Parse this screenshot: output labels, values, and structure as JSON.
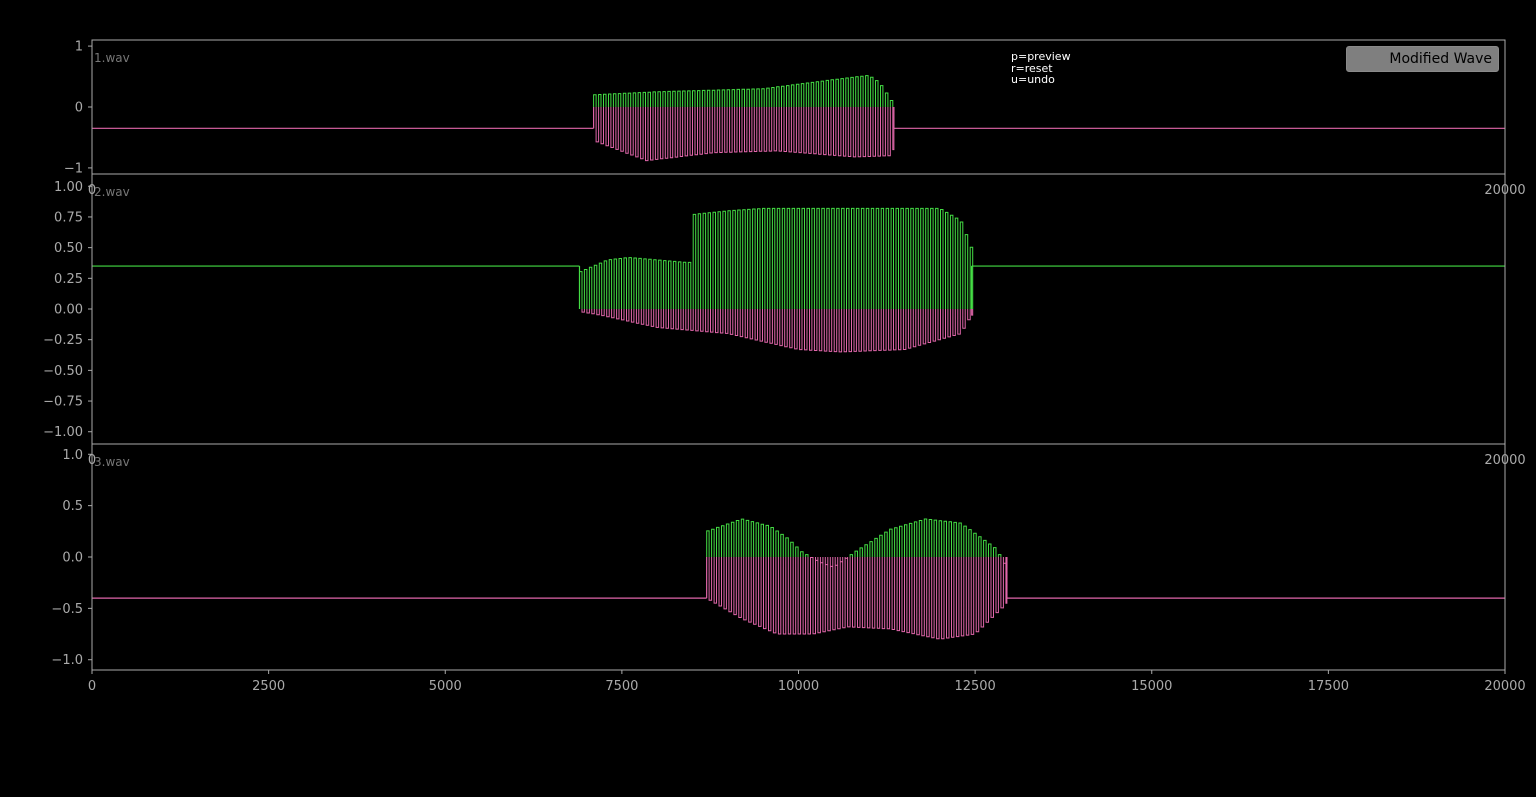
{
  "help_lines": [
    "p=preview",
    "r=reset",
    "u=undo"
  ],
  "legend_label": "Modified Wave",
  "colors": {
    "background": "#000000",
    "axis": "#aaaaaa",
    "tick_text": "#aaaaaa",
    "track_label": "#777777",
    "positive": "#44dd44",
    "negative": "#e066aa",
    "legend_bg": "#7f7f7f"
  },
  "chart_data": [
    {
      "type": "line",
      "track": "1.wav",
      "xlim": [
        0,
        20000
      ],
      "ylim": [
        -1.1,
        1.1
      ],
      "yticks": [
        1,
        0,
        -1
      ],
      "ytick_labels": [
        "1",
        "0",
        "−1"
      ],
      "xticks": [
        0,
        20000
      ],
      "xtick_labels": [
        "0",
        "20000"
      ],
      "baseline": -0.35,
      "burst": {
        "start": 7100,
        "end": 11350,
        "period": 70,
        "pos_env": [
          [
            7100,
            0.2
          ],
          [
            8000,
            0.25
          ],
          [
            9500,
            0.3
          ],
          [
            10500,
            0.45
          ],
          [
            11000,
            0.52
          ],
          [
            11150,
            0.4
          ],
          [
            11350,
            0.05
          ]
        ],
        "neg_env": [
          [
            7100,
            -0.55
          ],
          [
            7850,
            -0.88
          ],
          [
            8800,
            -0.75
          ],
          [
            9700,
            -0.72
          ],
          [
            10800,
            -0.82
          ],
          [
            11300,
            -0.8
          ],
          [
            11350,
            -0.7
          ]
        ]
      }
    },
    {
      "type": "line",
      "track": "2.wav",
      "xlim": [
        0,
        20000
      ],
      "ylim": [
        -1.1,
        1.1
      ],
      "yticks": [
        1.0,
        0.75,
        0.5,
        0.25,
        0.0,
        -0.25,
        -0.5,
        -0.75,
        -1.0
      ],
      "ytick_labels": [
        "1.00",
        "0.75",
        "0.50",
        "0.25",
        "0.00",
        "−0.25",
        "−0.50",
        "−0.75",
        "−1.00"
      ],
      "xticks": [
        0,
        20000
      ],
      "xtick_labels": [
        "0",
        "20000"
      ],
      "baseline": 0.35,
      "burst": {
        "start": 6900,
        "end": 12450,
        "period": 70,
        "pos_env": [
          [
            6900,
            0.3
          ],
          [
            7300,
            0.4
          ],
          [
            7600,
            0.42
          ],
          [
            8400,
            0.38
          ],
          [
            8500,
            0.38
          ],
          [
            8510,
            0.77
          ],
          [
            9000,
            0.8
          ],
          [
            9500,
            0.82
          ],
          [
            12000,
            0.82
          ],
          [
            12300,
            0.72
          ],
          [
            12450,
            0.5
          ]
        ],
        "neg_env": [
          [
            6900,
            -0.02
          ],
          [
            7200,
            -0.05
          ],
          [
            8000,
            -0.15
          ],
          [
            9000,
            -0.2
          ],
          [
            10000,
            -0.33
          ],
          [
            10600,
            -0.35
          ],
          [
            11500,
            -0.33
          ],
          [
            12300,
            -0.2
          ],
          [
            12450,
            -0.05
          ]
        ]
      }
    },
    {
      "type": "line",
      "track": "3.wav",
      "xlim": [
        0,
        20000
      ],
      "ylim": [
        -1.1,
        1.1
      ],
      "yticks": [
        1.0,
        0.5,
        0.0,
        -0.5,
        -1.0
      ],
      "ytick_labels": [
        "1.0",
        "0.5",
        "0.0",
        "−0.5",
        "−1.0"
      ],
      "xticks": [
        0,
        2500,
        5000,
        7500,
        10000,
        12500,
        15000,
        17500,
        20000
      ],
      "xtick_labels": [
        "0",
        "2500",
        "5000",
        "7500",
        "10000",
        "12500",
        "15000",
        "17500",
        "20000"
      ],
      "baseline": -0.4,
      "burst": {
        "start": 8700,
        "end": 12950,
        "period": 70,
        "pos_env": [
          [
            8700,
            0.25
          ],
          [
            9200,
            0.37
          ],
          [
            9600,
            0.3
          ],
          [
            9850,
            0.18
          ],
          [
            10050,
            0.05
          ],
          [
            10300,
            -0.05
          ],
          [
            10500,
            -0.1
          ],
          [
            10800,
            0.05
          ],
          [
            11300,
            0.27
          ],
          [
            11800,
            0.37
          ],
          [
            12300,
            0.33
          ],
          [
            12800,
            0.08
          ],
          [
            12950,
            -0.1
          ]
        ],
        "neg_env": [
          [
            8700,
            -0.4
          ],
          [
            9200,
            -0.6
          ],
          [
            9700,
            -0.75
          ],
          [
            10200,
            -0.75
          ],
          [
            10700,
            -0.68
          ],
          [
            11300,
            -0.7
          ],
          [
            12000,
            -0.8
          ],
          [
            12500,
            -0.75
          ],
          [
            12950,
            -0.45
          ]
        ]
      }
    }
  ]
}
